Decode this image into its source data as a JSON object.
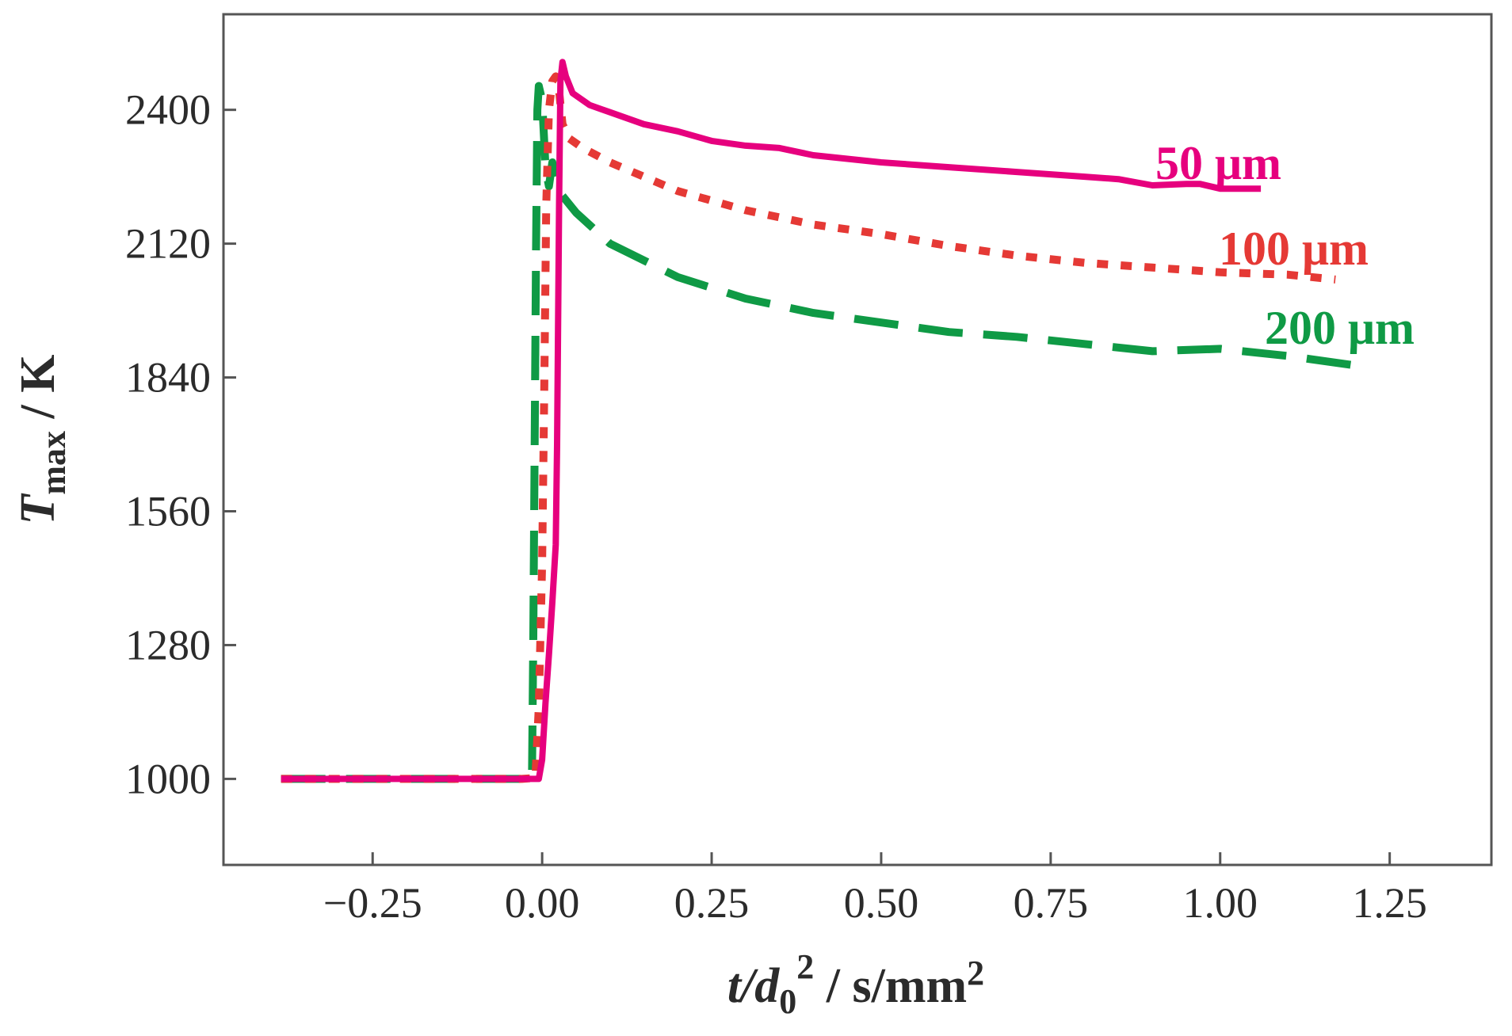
{
  "chart_data": {
    "type": "line",
    "title": "",
    "xlabel": {
      "italic": "t/d",
      "subscript": "0",
      "superscript": "2",
      "unit_prefix": " / s/mm",
      "unit_superscript": "2"
    },
    "ylabel": {
      "italic": "T",
      "subscript": "max",
      "unit": " / K"
    },
    "xlim": [
      -0.47,
      1.4
    ],
    "ylim": [
      820,
      2600
    ],
    "xticks": [
      -0.25,
      0.0,
      0.25,
      0.5,
      0.75,
      1.0,
      1.25
    ],
    "xtick_labels": [
      "−0.25",
      "0.00",
      "0.25",
      "0.50",
      "0.75",
      "1.00",
      "1.25"
    ],
    "yticks": [
      1000,
      1280,
      1560,
      1840,
      2120,
      2400
    ],
    "ytick_labels": [
      "1000",
      "1280",
      "1560",
      "1840",
      "2120",
      "2400"
    ],
    "grid": false,
    "series": [
      {
        "name": "50 µm",
        "label": "50 μm",
        "color": "#e6007e",
        "dash": "solid",
        "points": [
          [
            -0.385,
            1000
          ],
          [
            -0.02,
            1000
          ],
          [
            -0.005,
            1000
          ],
          [
            0.0,
            1040
          ],
          [
            0.005,
            1160
          ],
          [
            0.01,
            1260
          ],
          [
            0.015,
            1370
          ],
          [
            0.02,
            1490
          ],
          [
            0.022,
            1700
          ],
          [
            0.025,
            2200
          ],
          [
            0.027,
            2460
          ],
          [
            0.03,
            2500
          ],
          [
            0.035,
            2470
          ],
          [
            0.045,
            2435
          ],
          [
            0.07,
            2410
          ],
          [
            0.1,
            2395
          ],
          [
            0.15,
            2370
          ],
          [
            0.2,
            2355
          ],
          [
            0.25,
            2335
          ],
          [
            0.3,
            2325
          ],
          [
            0.35,
            2320
          ],
          [
            0.4,
            2305
          ],
          [
            0.5,
            2290
          ],
          [
            0.6,
            2280
          ],
          [
            0.7,
            2270
          ],
          [
            0.8,
            2260
          ],
          [
            0.85,
            2255
          ],
          [
            0.9,
            2242
          ],
          [
            0.95,
            2245
          ],
          [
            0.97,
            2245
          ],
          [
            1.0,
            2235
          ],
          [
            1.06,
            2235
          ]
        ]
      },
      {
        "name": "100 µm",
        "label": "100 μm",
        "color": "#e53935",
        "dash": "dotted",
        "points": [
          [
            -0.385,
            1000
          ],
          [
            -0.03,
            1000
          ],
          [
            -0.01,
            1002
          ],
          [
            -0.005,
            1150
          ],
          [
            0.0,
            1450
          ],
          [
            0.003,
            1800
          ],
          [
            0.006,
            2200
          ],
          [
            0.01,
            2400
          ],
          [
            0.015,
            2460
          ],
          [
            0.02,
            2470
          ],
          [
            0.025,
            2440
          ],
          [
            0.03,
            2370
          ],
          [
            0.04,
            2340
          ],
          [
            0.06,
            2320
          ],
          [
            0.1,
            2290
          ],
          [
            0.2,
            2230
          ],
          [
            0.3,
            2190
          ],
          [
            0.4,
            2160
          ],
          [
            0.5,
            2140
          ],
          [
            0.6,
            2115
          ],
          [
            0.7,
            2095
          ],
          [
            0.8,
            2080
          ],
          [
            0.9,
            2070
          ],
          [
            1.0,
            2060
          ],
          [
            1.1,
            2055
          ],
          [
            1.17,
            2045
          ]
        ]
      },
      {
        "name": "200 µm",
        "label": "200 μm",
        "color": "#0f9a45",
        "dash": "dashed",
        "points": [
          [
            -0.385,
            1000
          ],
          [
            -0.03,
            1000
          ],
          [
            -0.015,
            1000
          ],
          [
            -0.013,
            1300
          ],
          [
            -0.011,
            1700
          ],
          [
            -0.009,
            2100
          ],
          [
            -0.007,
            2400
          ],
          [
            -0.005,
            2450
          ],
          [
            0.0,
            2420
          ],
          [
            0.005,
            2280
          ],
          [
            0.01,
            2240
          ],
          [
            0.015,
            2290
          ],
          [
            0.02,
            2260
          ],
          [
            0.03,
            2220
          ],
          [
            0.05,
            2185
          ],
          [
            0.1,
            2120
          ],
          [
            0.2,
            2050
          ],
          [
            0.3,
            2005
          ],
          [
            0.4,
            1975
          ],
          [
            0.5,
            1955
          ],
          [
            0.6,
            1935
          ],
          [
            0.7,
            1925
          ],
          [
            0.8,
            1910
          ],
          [
            0.9,
            1895
          ],
          [
            1.0,
            1900
          ],
          [
            1.1,
            1885
          ],
          [
            1.2,
            1865
          ]
        ]
      }
    ]
  }
}
